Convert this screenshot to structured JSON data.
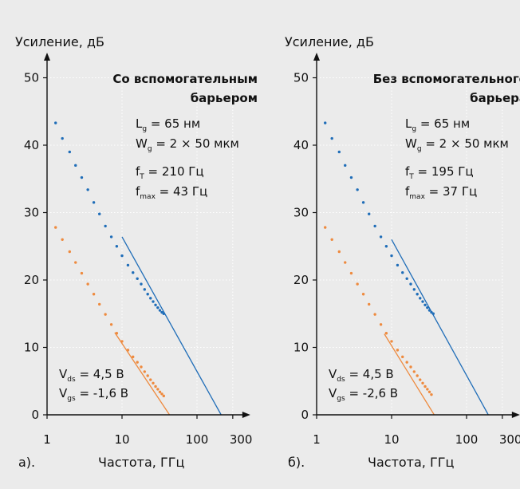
{
  "colors": {
    "background": "#ebebeb",
    "blue_series": "#1f6db8",
    "orange_series": "#ee8a3e",
    "grid": "#ffffff",
    "axis": "#111111"
  },
  "chart_data": [
    {
      "type": "line",
      "panel_label": "а).",
      "title_lines": [
        "Со вспомогательным",
        "барьером"
      ],
      "xlabel": "Частота, ГГц",
      "ylabel": "Усиление, дБ",
      "x_scale": "log",
      "xlim": [
        1,
        300
      ],
      "ylim": [
        0,
        50
      ],
      "x_ticks": [
        1,
        10,
        100,
        300
      ],
      "x_tick_labels": [
        "1",
        "10",
        "100",
        "300"
      ],
      "y_ticks": [
        0,
        10,
        20,
        30,
        40,
        50
      ],
      "y_tick_labels": [
        "0",
        "10",
        "20",
        "30",
        "40",
        "50"
      ],
      "grid": true,
      "params_top": [
        {
          "base": "L",
          "sub": "g",
          "text": " = 65 нм"
        },
        {
          "base": "W",
          "sub": "g",
          "text": " = 2 × 50 мкм"
        },
        {
          "base": "f",
          "sub": "T",
          "text": " = 210 Гц"
        },
        {
          "base": "f",
          "sub": "max",
          "text": " = 43 Гц"
        }
      ],
      "params_bottom": [
        {
          "base": "V",
          "sub": "ds",
          "text": " = 4,5 В"
        },
        {
          "base": "V",
          "sub": "gs",
          "text": " = -1,6 В"
        }
      ],
      "series": [
        {
          "color": "#1f6db8",
          "style": "dots",
          "x": [
            1.3,
            1.6,
            2.0,
            2.4,
            2.9,
            3.5,
            4.2,
            5.0,
            6.0,
            7.2,
            8.5,
            10,
            12,
            14,
            16,
            18,
            20,
            22,
            24,
            26,
            28,
            30,
            32,
            34,
            36
          ],
          "y": [
            43.3,
            41.0,
            39.0,
            37.0,
            35.2,
            33.4,
            31.5,
            29.8,
            28.0,
            26.4,
            25.0,
            23.6,
            22.2,
            21.1,
            20.2,
            19.4,
            18.6,
            17.9,
            17.3,
            16.8,
            16.3,
            15.9,
            15.5,
            15.2,
            15.0
          ]
        },
        {
          "color": "#1f6db8",
          "style": "line",
          "x": [
            10,
            210
          ],
          "y": [
            26.4,
            0
          ]
        },
        {
          "color": "#ee8a3e",
          "style": "dots",
          "x": [
            1.3,
            1.6,
            2.0,
            2.4,
            2.9,
            3.5,
            4.2,
            5.0,
            6.0,
            7.2,
            8.5,
            10,
            12,
            14,
            16,
            18,
            20,
            22,
            24,
            26,
            28,
            30,
            32,
            34,
            36
          ],
          "y": [
            27.8,
            26.0,
            24.2,
            22.6,
            21.0,
            19.4,
            17.9,
            16.4,
            14.9,
            13.4,
            12.1,
            10.9,
            9.6,
            8.6,
            7.8,
            7.1,
            6.4,
            5.8,
            5.2,
            4.7,
            4.2,
            3.8,
            3.4,
            3.1,
            2.8
          ]
        },
        {
          "color": "#ee8a3e",
          "style": "line",
          "x": [
            8,
            43
          ],
          "y": [
            12.2,
            0
          ]
        }
      ]
    },
    {
      "type": "line",
      "panel_label": "б).",
      "title_lines": [
        "Без вспомогательного",
        "барьера"
      ],
      "xlabel": "Частота, ГГц",
      "ylabel": "Усиление, дБ",
      "x_scale": "log",
      "xlim": [
        1,
        300
      ],
      "ylim": [
        0,
        50
      ],
      "x_ticks": [
        1,
        10,
        100,
        300
      ],
      "x_tick_labels": [
        "1",
        "10",
        "100",
        "300"
      ],
      "y_ticks": [
        0,
        10,
        20,
        30,
        40,
        50
      ],
      "y_tick_labels": [
        "0",
        "10",
        "20",
        "30",
        "40",
        "50"
      ],
      "grid": true,
      "params_top": [
        {
          "base": "L",
          "sub": "g",
          "text": " = 65 нм"
        },
        {
          "base": "W",
          "sub": "g",
          "text": " = 2 × 50 мкм"
        },
        {
          "base": "f",
          "sub": "T",
          "text": " = 195 Гц"
        },
        {
          "base": "f",
          "sub": "max",
          "text": " = 37 Гц"
        }
      ],
      "params_bottom": [
        {
          "base": "V",
          "sub": "ds",
          "text": " = 4,5 В"
        },
        {
          "base": "V",
          "sub": "gs",
          "text": " = -2,6 В"
        }
      ],
      "series": [
        {
          "color": "#1f6db8",
          "style": "dots",
          "x": [
            1.3,
            1.6,
            2.0,
            2.4,
            2.9,
            3.5,
            4.2,
            5.0,
            6.0,
            7.2,
            8.5,
            10,
            12,
            14,
            16,
            18,
            20,
            22,
            24,
            26,
            28,
            30,
            32,
            34,
            36
          ],
          "y": [
            43.3,
            41.0,
            39.0,
            37.0,
            35.2,
            33.4,
            31.5,
            29.8,
            28.0,
            26.4,
            25.0,
            23.6,
            22.2,
            21.1,
            20.2,
            19.4,
            18.6,
            17.9,
            17.3,
            16.8,
            16.3,
            15.9,
            15.5,
            15.2,
            15.0
          ]
        },
        {
          "color": "#1f6db8",
          "style": "line",
          "x": [
            10,
            195
          ],
          "y": [
            26.0,
            0
          ]
        },
        {
          "color": "#ee8a3e",
          "style": "dots",
          "x": [
            1.3,
            1.6,
            2.0,
            2.4,
            2.9,
            3.5,
            4.2,
            5.0,
            6.0,
            7.2,
            8.5,
            10,
            12,
            14,
            16,
            18,
            20,
            22,
            24,
            26,
            28,
            30,
            32,
            34
          ],
          "y": [
            27.8,
            26.0,
            24.2,
            22.6,
            21.0,
            19.4,
            17.9,
            16.4,
            14.9,
            13.4,
            12.1,
            10.9,
            9.6,
            8.6,
            7.8,
            7.1,
            6.4,
            5.8,
            5.2,
            4.7,
            4.2,
            3.8,
            3.4,
            3.0
          ]
        },
        {
          "color": "#ee8a3e",
          "style": "line",
          "x": [
            8,
            37
          ],
          "y": [
            12.0,
            0
          ]
        }
      ]
    }
  ]
}
